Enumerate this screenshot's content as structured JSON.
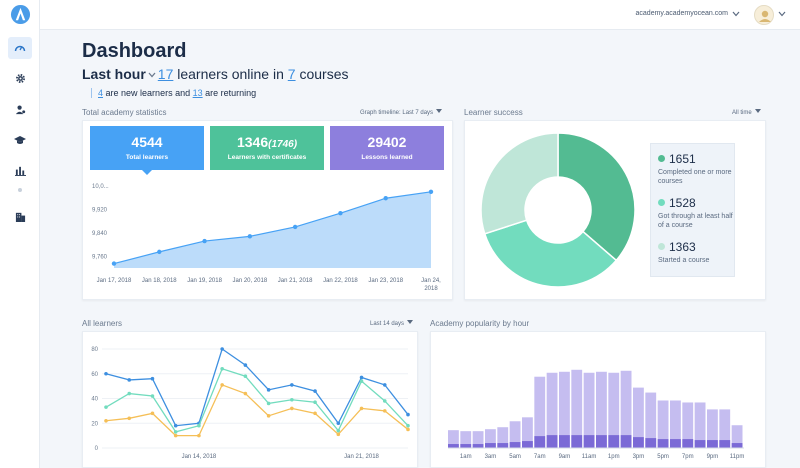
{
  "topbar": {
    "domain": "academy.academyocean.com"
  },
  "icons": {
    "logo": "academyocean-logo-icon",
    "sidebar": [
      "dashboard-gauge-icon",
      "settings-gear-icon",
      "users-icon",
      "graduation-cap-icon",
      "bar-chart-icon",
      "buildings-icon"
    ]
  },
  "page": {
    "title": "Dashboard",
    "period": "Last hour",
    "learners_online": "17",
    "learners_online_text": "learners online in",
    "courses_count": "7",
    "courses_text": "courses",
    "new_learners": "4",
    "new_text": "are new learners and",
    "returning": "13",
    "returning_text": "are returning"
  },
  "total_stats": {
    "label": "Total academy statistics",
    "timeline_label": "Graph timeline:",
    "timeline_value": "Last 7 days",
    "cards": [
      {
        "value": "4544",
        "extra": "",
        "label": "Total learners",
        "color": "#47a2f5"
      },
      {
        "value": "1346",
        "extra": "(1746)",
        "label": "Learners with certificates",
        "color": "#4ec29a"
      },
      {
        "value": "29402",
        "extra": "",
        "label": "Lessons learned",
        "color": "#8d7fdd"
      }
    ]
  },
  "learner_success": {
    "label": "Learner success",
    "range": "All time",
    "items": [
      {
        "value": "1651",
        "text": "Completed one or more courses",
        "color": "#53bb92"
      },
      {
        "value": "1528",
        "text": "Got through at least half of a course",
        "color": "#72dcbe"
      },
      {
        "value": "1363",
        "text": "Started a course",
        "color": "#bfe6d8"
      }
    ]
  },
  "all_learners": {
    "label": "All learners",
    "range": "Last 14 days"
  },
  "popularity": {
    "label": "Academy popularity by hour"
  },
  "chart_data": [
    {
      "type": "area",
      "title": "Total academy statistics",
      "categories": [
        "Jan 17, 2018",
        "Jan 18, 2018",
        "Jan 19, 2018",
        "Jan 20, 2018",
        "Jan 21, 2018",
        "Jan 22, 2018",
        "Jan 23, 2018",
        "Jan 24, 2018"
      ],
      "ytick_labels": [
        "9,760",
        "9,840",
        "9,920",
        "10,0..."
      ],
      "ylim": [
        9720,
        10010
      ],
      "values": [
        9735,
        9775,
        9812,
        9828,
        9860,
        9907,
        9958,
        9980
      ],
      "color": "#47a2f5",
      "grid": false
    },
    {
      "type": "pie",
      "title": "Learner success",
      "categories": [
        "Completed one or more courses",
        "Got through at least half of a course",
        "Started a course"
      ],
      "values": [
        1651,
        1528,
        1363
      ],
      "colors": [
        "#53bb92",
        "#72dcbe",
        "#bfe6d8"
      ]
    },
    {
      "type": "line",
      "title": "All learners",
      "yticks": [
        0,
        20,
        40,
        60,
        80
      ],
      "ylim": [
        0,
        80
      ],
      "x_labels": [
        "Jan 14, 2018",
        "Jan 21, 2018"
      ],
      "x_label_index": [
        4,
        11
      ],
      "series": [
        {
          "color": "#3d8fe0",
          "values": [
            60,
            55,
            56,
            18,
            20,
            80,
            67,
            47,
            51,
            46,
            20,
            57,
            51,
            27
          ]
        },
        {
          "color": "#72dcbe",
          "values": [
            33,
            44,
            42,
            13,
            18,
            64,
            58,
            36,
            39,
            37,
            14,
            54,
            38,
            18
          ]
        },
        {
          "color": "#f5bf57",
          "values": [
            22,
            24,
            28,
            10,
            10,
            51,
            44,
            26,
            32,
            28,
            11,
            32,
            30,
            15
          ]
        }
      ],
      "grid": true
    },
    {
      "type": "bar",
      "title": "Academy popularity by hour",
      "categories": [
        "12am",
        "1am",
        "2am",
        "3am",
        "4am",
        "5am",
        "6am",
        "7am",
        "8am",
        "9am",
        "10am",
        "11am",
        "12pm",
        "1pm",
        "2pm",
        "3pm",
        "4pm",
        "5pm",
        "6pm",
        "7pm",
        "8pm",
        "9pm",
        "10pm",
        "11pm"
      ],
      "tick_labels": [
        "1am",
        "3am",
        "5am",
        "7am",
        "9am",
        "11am",
        "1pm",
        "3pm",
        "5pm",
        "7pm",
        "9pm",
        "11pm"
      ],
      "ylim": [
        0,
        100
      ],
      "series": [
        {
          "name": "total",
          "color": "#c5bdf0",
          "values": [
            18,
            17,
            17,
            19,
            21,
            27,
            31,
            72,
            76,
            77,
            79,
            76,
            77,
            76,
            78,
            61,
            56,
            48,
            48,
            46,
            46,
            39,
            39,
            23
          ]
        },
        {
          "name": "part",
          "color": "#7b6ad6",
          "values": [
            4,
            4,
            4,
            5,
            5,
            6,
            7,
            12,
            13,
            13,
            13,
            13,
            13,
            13,
            13,
            11,
            10,
            9,
            9,
            9,
            8,
            8,
            8,
            5
          ]
        }
      ]
    }
  ]
}
